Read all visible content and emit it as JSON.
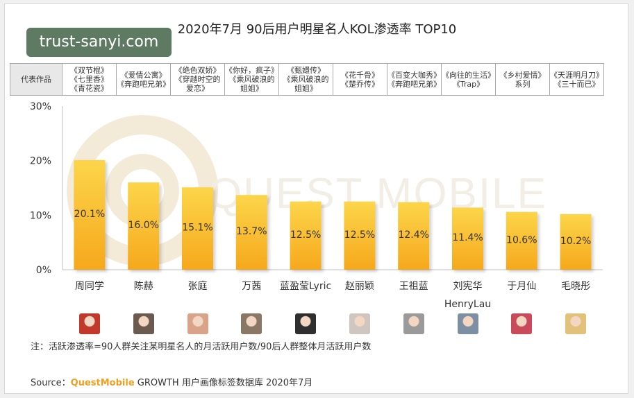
{
  "watermark": "trust-sanyi.com",
  "title": "2020年7月 90后用户明星名人KOL渗透率 TOP10",
  "works_header": "代表作品",
  "works": [
    [
      "《双节棍》",
      "《七里香》",
      "《青花瓷》"
    ],
    [
      "《爱情公寓》",
      "《奔跑吧兄弟》"
    ],
    [
      "《绝色双娇》",
      "《穿越时空的",
      "爱恋》"
    ],
    [
      "《你好，疯子》",
      "《乘风破浪的",
      "姐姐》"
    ],
    [
      "《甄嬛传》",
      "《乘风破浪的",
      "姐姐》"
    ],
    [
      "《花千骨》",
      "《楚乔传》"
    ],
    [
      "《百变大咖秀》",
      "《奔跑吧兄弟》"
    ],
    [
      "《向往的生活》",
      "《Trap》"
    ],
    [
      "《乡村爱情》",
      "系列"
    ],
    [
      "《天涯明月刀》",
      "《三十而已》"
    ]
  ],
  "chart_data": {
    "type": "bar",
    "title": "2020年7月 90后用户明星名人KOL渗透率 TOP10",
    "categories": [
      "周同学",
      "陈赫",
      "张庭",
      "万茜",
      "蓝盈莹Lyric",
      "赵丽颖",
      "王祖蓝",
      "刘宪华 HenryLau",
      "于月仙",
      "毛晓彤"
    ],
    "values": [
      20.1,
      16.0,
      15.1,
      13.7,
      12.5,
      12.5,
      12.4,
      11.4,
      10.6,
      10.2
    ],
    "value_labels": [
      "20.1%",
      "16.0%",
      "15.1%",
      "13.7%",
      "12.5%",
      "12.5%",
      "12.4%",
      "11.4%",
      "10.6%",
      "10.2%"
    ],
    "category_labels": [
      [
        "周同学"
      ],
      [
        "陈赫"
      ],
      [
        "张庭"
      ],
      [
        "万茜"
      ],
      [
        "蓝盈莹Lyric"
      ],
      [
        "赵丽颖"
      ],
      [
        "王祖蓝"
      ],
      [
        "刘宪华",
        "HenryLau"
      ],
      [
        "于月仙"
      ],
      [
        "毛晓彤"
      ]
    ],
    "yticks": [
      "0%",
      "10%",
      "20%",
      "30%"
    ],
    "ylim": [
      0,
      30
    ],
    "grid": false,
    "bar_color_top": "#fcd54a",
    "bar_color_bottom": "#f6a81c"
  },
  "watermark_logo": "QUEST MOBILE",
  "avatar_colors": [
    "#c0392b",
    "#6b5a50",
    "#d9a38a",
    "#8a7766",
    "#2f2f2f",
    "#cfc6c0",
    "#9a9a9a",
    "#7c8fa3",
    "#c94a5a",
    "#e2c27a"
  ],
  "note": "注：活跃渗透率=90人群关注某明星名人的月活跃用户数/90后人群整体月活跃用户数",
  "source_prefix": "Source：",
  "source_brand": "QuestMobile",
  "source_text": " GROWTH 用户画像标签数据库 2020年7月"
}
